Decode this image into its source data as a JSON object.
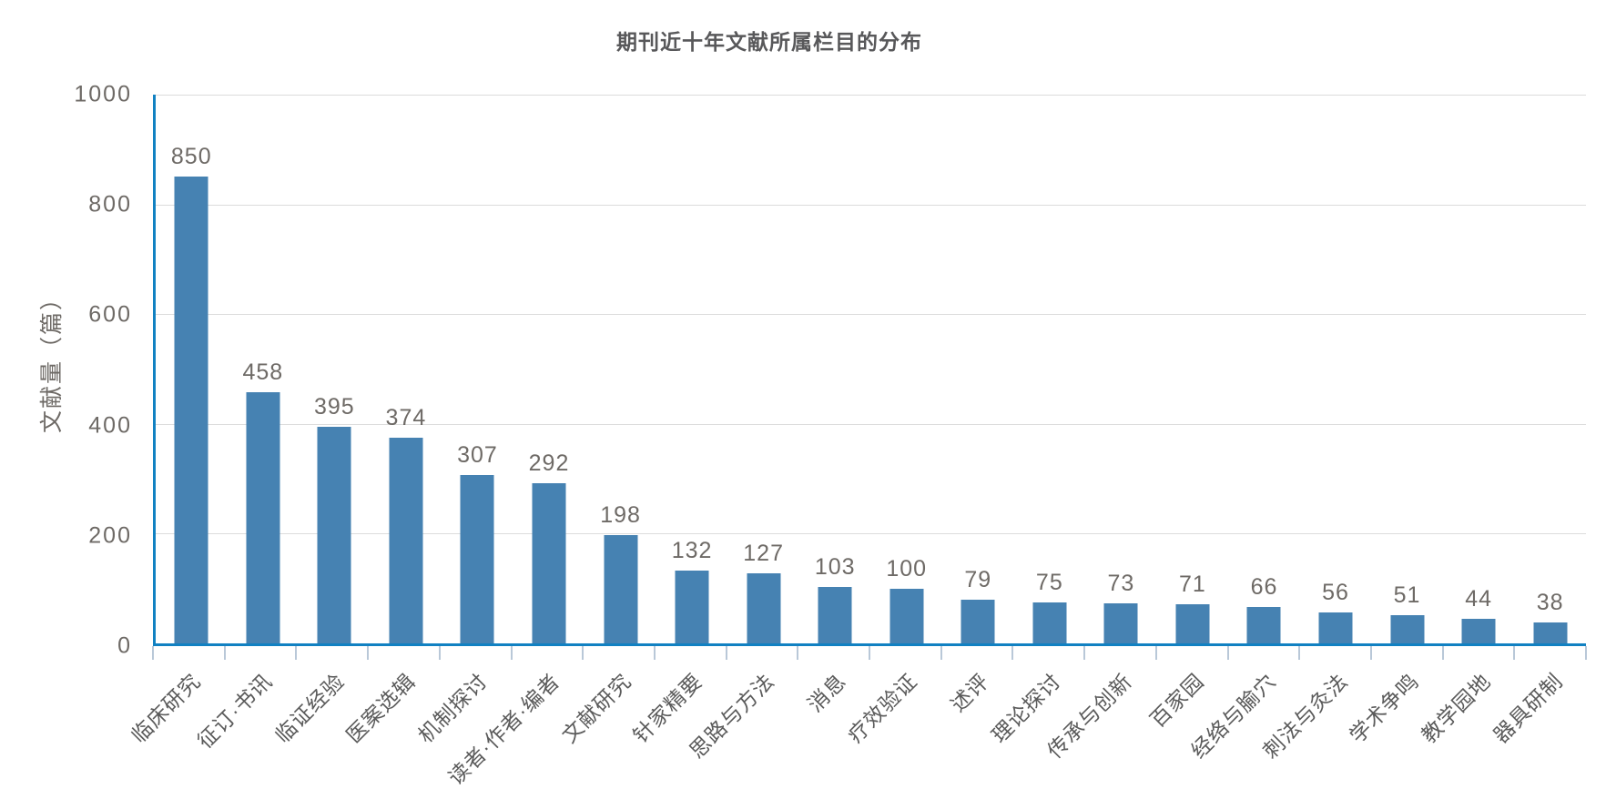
{
  "page": {
    "background": "#ffffff"
  },
  "colors": {
    "bar": "#4682B2",
    "axis": "#1181C2",
    "gridline": "#DCDCDC",
    "x_tick": "#B9C8D8",
    "value_label": "#6E6A66",
    "y_tick_label": "#6E6A66",
    "y_axis_label": "#6E6A66",
    "category_label": "#5B5B5B",
    "title": "#58585A"
  },
  "chart_data": {
    "type": "bar",
    "title": "期刊近十年文献所属栏目的分布",
    "categories": [
      "临床研究",
      "征订·书讯",
      "临证经验",
      "医案选辑",
      "机制探讨",
      "读者·作者·编者",
      "文献研究",
      "针家精要",
      "思路与方法",
      "消息",
      "疗效验证",
      "述评",
      "理论探讨",
      "传承与创新",
      "百家园",
      "经络与腧穴",
      "刺法与灸法",
      "学术争鸣",
      "教学园地",
      "器具研制"
    ],
    "values": [
      850,
      458,
      395,
      374,
      307,
      292,
      198,
      132,
      127,
      103,
      100,
      79,
      75,
      73,
      71,
      66,
      56,
      51,
      44,
      38
    ],
    "xlabel": "",
    "ylabel": "文献量（篇）",
    "ylim": [
      0,
      1000
    ],
    "y_ticks": [
      0,
      200,
      400,
      600,
      800,
      1000
    ],
    "grid": true,
    "legend": false,
    "value_labels": true
  }
}
